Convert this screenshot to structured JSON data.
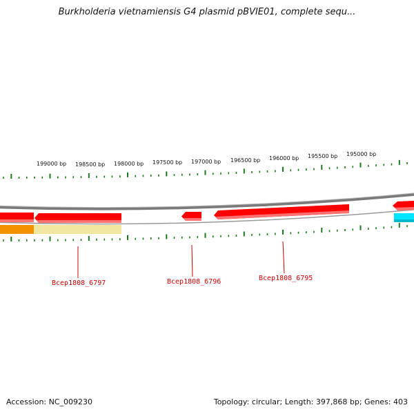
{
  "title": "Burkholderia vietnamiensis G4 plasmid pBVIE01, complete sequ...",
  "position_labels": [
    "199000 bp",
    "198500 bp",
    "198000 bp",
    "197500 bp",
    "197000 bp",
    "196500 bp",
    "196000 bp",
    "195500 bp",
    "195000 bp"
  ],
  "genes": [
    {
      "id": "Bcep1808_6797"
    },
    {
      "id": "Bcep1808_6796"
    },
    {
      "id": "Bcep1808_6795"
    }
  ],
  "colors": {
    "gene_forward": "#ff0000",
    "gene_highlight": "#ff8080",
    "backbone": "#808080",
    "tick": "#1a7a1a",
    "label": "#cc0000",
    "feature_orange": "#f39200",
    "feature_khaki": "#f0e6a0",
    "feature_cyan": "#00e5ff"
  },
  "footer": {
    "accession": "Accession: NC_009230",
    "summary": "Topology: circular; Length: 397,868 bp; Genes: 403"
  }
}
